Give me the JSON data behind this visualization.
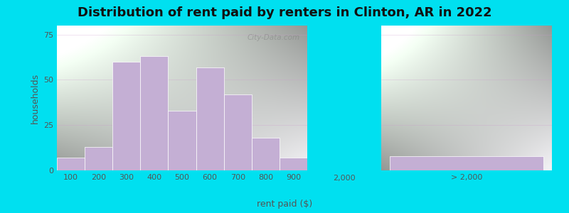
{
  "title": "Distribution of rent paid by renters in Clinton, AR in 2022",
  "xlabel": "rent paid ($)",
  "ylabel": "households",
  "bar_labels": [
    "100",
    "200",
    "300",
    "400",
    "500",
    "600",
    "700",
    "800",
    "900"
  ],
  "bar_values": [
    7,
    13,
    60,
    63,
    33,
    57,
    42,
    18,
    7
  ],
  "extra_bar_label": "> 2,000",
  "extra_bar_value": 8,
  "bar_color": "#c4afd4",
  "ylim": [
    0,
    80
  ],
  "yticks": [
    0,
    25,
    50,
    75
  ],
  "bg_outer": "#00e0f0",
  "title_fontsize": 13,
  "axis_label_fontsize": 9,
  "tick_fontsize": 8,
  "watermark": "City-Data.com"
}
